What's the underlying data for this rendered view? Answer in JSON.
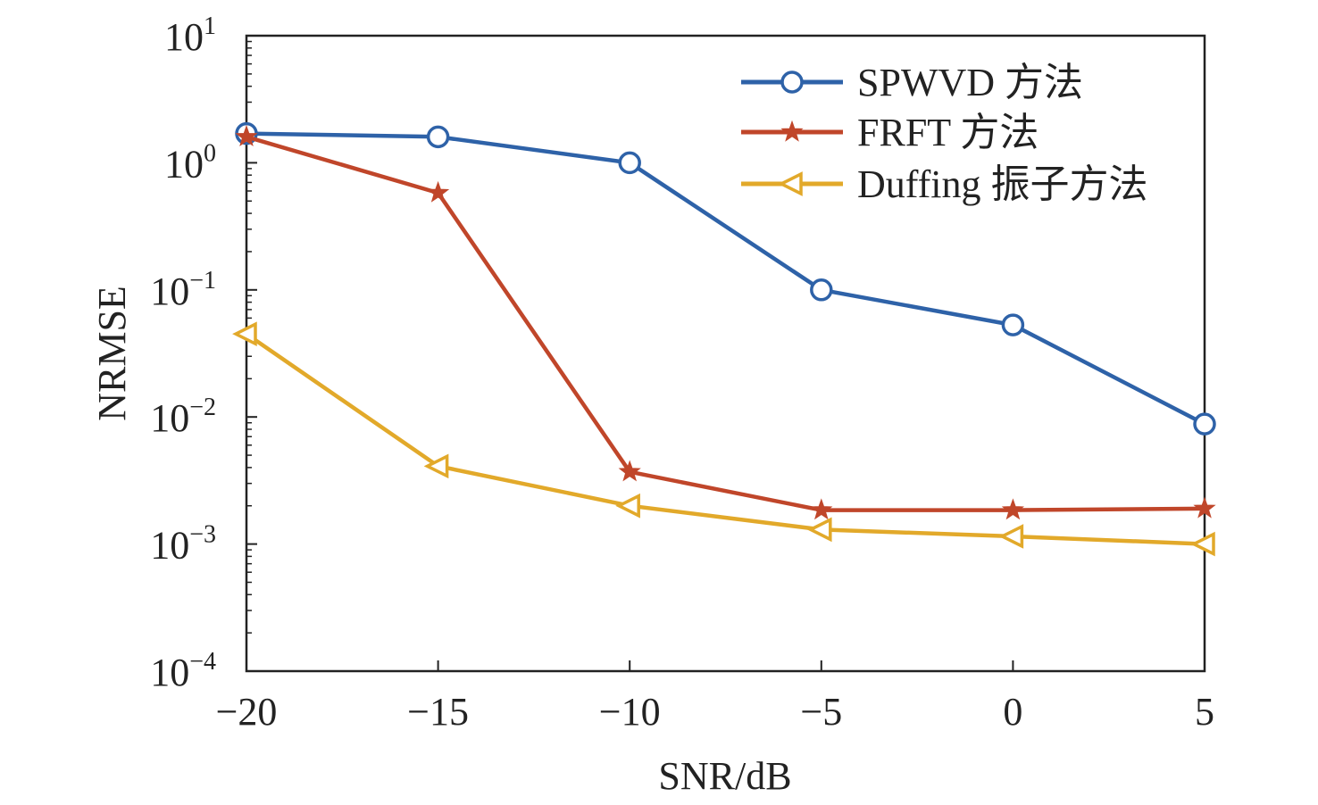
{
  "chart_data": {
    "type": "line",
    "xlabel": "SNR/dB",
    "ylabel": "NRMSE",
    "x": [
      -20,
      -15,
      -10,
      -5,
      0,
      5
    ],
    "xlim": [
      -20,
      5
    ],
    "ylim": [
      0.0001,
      10
    ],
    "y_scale": "log",
    "x_ticks": [
      "−20",
      "−15",
      "−10",
      "−5",
      "0",
      "5"
    ],
    "y_ticks": [
      {
        "base": "10",
        "exp": "−4",
        "value": 0.0001
      },
      {
        "base": "10",
        "exp": "−3",
        "value": 0.001
      },
      {
        "base": "10",
        "exp": "−2",
        "value": 0.01
      },
      {
        "base": "10",
        "exp": "−1",
        "value": 0.1
      },
      {
        "base": "10",
        "exp": "0",
        "value": 1
      },
      {
        "base": "10",
        "exp": "1",
        "value": 10
      }
    ],
    "grid": false,
    "legend_position": "top-right",
    "series": [
      {
        "name": "SPWVD 方法",
        "color": "#2e62a8",
        "marker": "circle",
        "values": [
          1.7,
          1.6,
          1.0,
          0.1,
          0.053,
          0.0088
        ]
      },
      {
        "name": "FRFT 方法",
        "color": "#c0462a",
        "marker": "star",
        "values": [
          1.6,
          0.58,
          0.0037,
          0.00185,
          0.00185,
          0.0019
        ]
      },
      {
        "name": "Duffing 振子方法",
        "color": "#e2a92a",
        "marker": "triangle-left",
        "values": [
          0.045,
          0.0041,
          0.002,
          0.0013,
          0.00115,
          0.001
        ]
      }
    ]
  }
}
